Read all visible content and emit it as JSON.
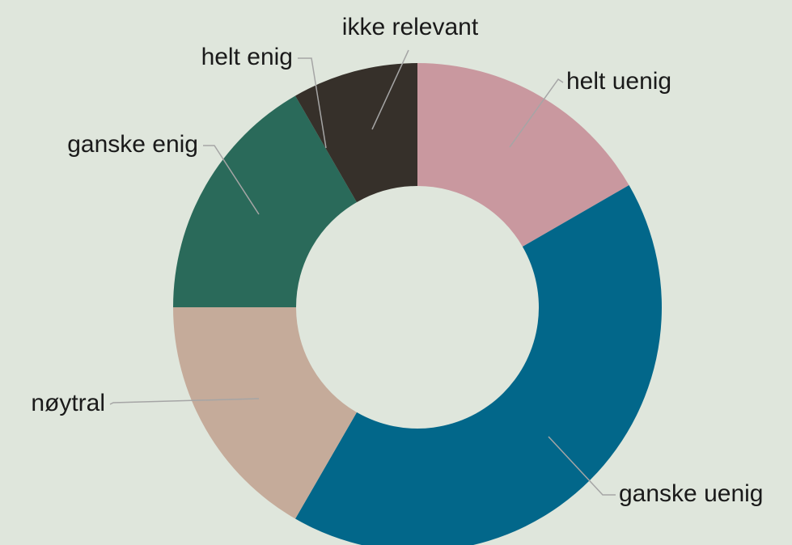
{
  "chart_data": {
    "type": "donut",
    "categories": [
      "helt uenig",
      "ganske uenig",
      "nøytral",
      "ganske enig",
      "helt enig",
      "ikke relevant"
    ],
    "values": [
      2,
      5,
      2,
      2,
      0,
      1
    ],
    "colors": [
      "#c9989f",
      "#02678a",
      "#c5ab9a",
      "#2a6a5a",
      "#36302a",
      "#36302a"
    ]
  }
}
